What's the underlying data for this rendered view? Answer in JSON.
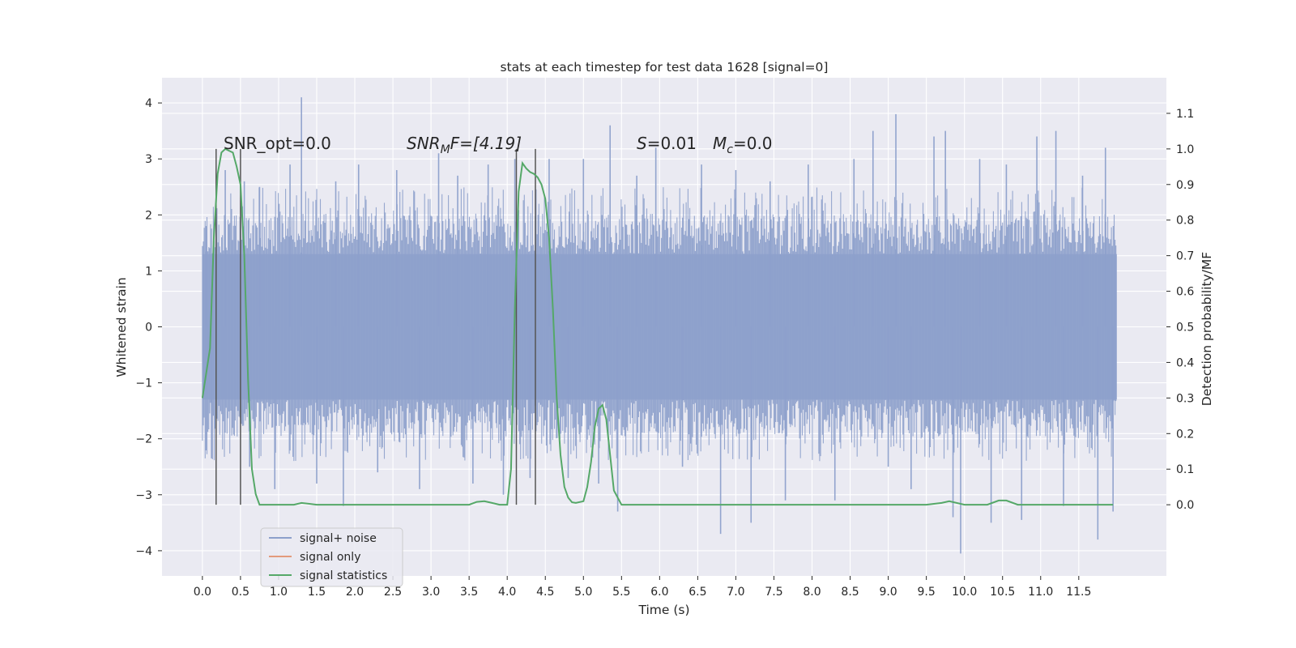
{
  "chart_data": {
    "type": "line",
    "title": "stats at each timestep for test data 1628 [signal=0]",
    "xlabel": "Time (s)",
    "ylabel": "Whitened strain",
    "y2label": "Detection probability/MF",
    "xlim": [
      -0.53,
      12.65
    ],
    "ylim": [
      -4.45,
      4.45
    ],
    "y2lim": [
      -0.2,
      1.2
    ],
    "x_ticks": [
      0.0,
      0.5,
      1.0,
      1.5,
      2.0,
      2.5,
      3.0,
      3.5,
      4.0,
      4.5,
      5.0,
      5.5,
      6.0,
      6.5,
      7.0,
      7.5,
      8.0,
      8.5,
      9.0,
      9.5,
      10.0,
      10.5,
      11.0,
      11.5
    ],
    "x_tick_labels": [
      "0.0",
      "0.5",
      "1.0",
      "1.5",
      "2.0",
      "2.5",
      "3.0",
      "3.5",
      "4.0",
      "4.5",
      "5.0",
      "5.5",
      "6.0",
      "6.5",
      "7.0",
      "7.5",
      "8.0",
      "8.5",
      "9.0",
      "9.5",
      "10.0",
      "10.5",
      "11.0",
      "11.5"
    ],
    "y_ticks": [
      4,
      3,
      2,
      1,
      0,
      -1,
      -2,
      -3,
      -4
    ],
    "y_tick_labels": [
      "4",
      "3",
      "2",
      "1",
      "0",
      "−1",
      "−2",
      "−3",
      "−4"
    ],
    "y2_ticks": [
      1.1,
      1.0,
      0.9,
      0.8,
      0.7,
      0.6,
      0.5,
      0.4,
      0.3,
      0.2,
      0.1,
      0.0
    ],
    "y2_tick_labels": [
      "1.1",
      "1.0",
      "0.9",
      "0.8",
      "0.7",
      "0.6",
      "0.5",
      "0.4",
      "0.3",
      "0.2",
      "0.1",
      "0.0"
    ],
    "grid": true,
    "legend_position": "lower-left",
    "legend": [
      {
        "name": "signal+ noise",
        "color": "#8da0cb"
      },
      {
        "name": "signal only",
        "color": "#e39a7c"
      },
      {
        "name": "signal statistics",
        "color": "#55a868"
      }
    ],
    "annotations": {
      "snr_opt": "SNR_opt=0.0",
      "snr_mf_main": "SNR",
      "snr_mf_sub": "M",
      "snr_mf_rest": "F=[4.19]",
      "s_main": "S",
      "s_rest": "=0.01",
      "mc_main": "M",
      "mc_sub": "c",
      "mc_rest": "=0.0"
    },
    "series": [
      {
        "name": "signal+ noise",
        "color": "#8da0cb",
        "x_range": [
          0.0,
          12.0
        ],
        "band_ylim": [
          -1.3,
          1.3
        ],
        "spikes": [
          {
            "x": 0.05,
            "y": 1.8
          },
          {
            "x": 0.12,
            "y": -2.35
          },
          {
            "x": 0.3,
            "y": 2.8
          },
          {
            "x": 0.55,
            "y": 2.6
          },
          {
            "x": 0.62,
            "y": -2.5
          },
          {
            "x": 0.75,
            "y": 2.5
          },
          {
            "x": 0.95,
            "y": -2.9
          },
          {
            "x": 1.15,
            "y": 2.9
          },
          {
            "x": 1.3,
            "y": 4.1
          },
          {
            "x": 1.5,
            "y": -2.8
          },
          {
            "x": 1.75,
            "y": 2.6
          },
          {
            "x": 1.85,
            "y": -3.2
          },
          {
            "x": 2.05,
            "y": 2.9
          },
          {
            "x": 2.3,
            "y": -2.6
          },
          {
            "x": 2.55,
            "y": 2.8
          },
          {
            "x": 2.85,
            "y": -2.9
          },
          {
            "x": 3.1,
            "y": 3.1
          },
          {
            "x": 3.35,
            "y": 2.7
          },
          {
            "x": 3.55,
            "y": -2.8
          },
          {
            "x": 3.75,
            "y": 2.9
          },
          {
            "x": 3.95,
            "y": -3.0
          },
          {
            "x": 4.1,
            "y": 3.0
          },
          {
            "x": 4.3,
            "y": -2.7
          },
          {
            "x": 4.55,
            "y": 3.0
          },
          {
            "x": 4.8,
            "y": -2.7
          },
          {
            "x": 5.0,
            "y": 3.0
          },
          {
            "x": 5.2,
            "y": -2.8
          },
          {
            "x": 5.35,
            "y": 3.6
          },
          {
            "x": 5.45,
            "y": -3.3
          },
          {
            "x": 5.7,
            "y": 2.7
          },
          {
            "x": 5.95,
            "y": 3.2
          },
          {
            "x": 6.3,
            "y": -2.5
          },
          {
            "x": 6.55,
            "y": 2.9
          },
          {
            "x": 6.8,
            "y": -3.7
          },
          {
            "x": 7.0,
            "y": 2.8
          },
          {
            "x": 7.2,
            "y": -3.5
          },
          {
            "x": 7.45,
            "y": 2.6
          },
          {
            "x": 7.65,
            "y": -3.1
          },
          {
            "x": 7.95,
            "y": 2.9
          },
          {
            "x": 8.3,
            "y": -3.1
          },
          {
            "x": 8.55,
            "y": 3.0
          },
          {
            "x": 8.8,
            "y": 3.5
          },
          {
            "x": 9.0,
            "y": -2.5
          },
          {
            "x": 9.1,
            "y": 3.8
          },
          {
            "x": 9.3,
            "y": -2.9
          },
          {
            "x": 9.6,
            "y": 3.4
          },
          {
            "x": 9.75,
            "y": 3.5
          },
          {
            "x": 9.85,
            "y": -3.4
          },
          {
            "x": 9.95,
            "y": -4.05
          },
          {
            "x": 10.2,
            "y": 3.0
          },
          {
            "x": 10.35,
            "y": -3.5
          },
          {
            "x": 10.55,
            "y": 2.9
          },
          {
            "x": 10.75,
            "y": -3.45
          },
          {
            "x": 10.95,
            "y": 3.4
          },
          {
            "x": 11.2,
            "y": 3.5
          },
          {
            "x": 11.3,
            "y": -3.2
          },
          {
            "x": 11.55,
            "y": 2.7
          },
          {
            "x": 11.75,
            "y": -3.8
          },
          {
            "x": 11.85,
            "y": 3.2
          },
          {
            "x": 11.95,
            "y": -3.3
          }
        ]
      },
      {
        "name": "signal statistics",
        "color": "#55a868",
        "axis": "right",
        "x": [
          0.0,
          0.05,
          0.1,
          0.15,
          0.2,
          0.25,
          0.3,
          0.35,
          0.4,
          0.45,
          0.5,
          0.55,
          0.6,
          0.65,
          0.7,
          0.75,
          0.8,
          0.9,
          1.0,
          1.2,
          1.3,
          1.5,
          2.0,
          2.5,
          3.0,
          3.5,
          3.6,
          3.7,
          3.8,
          3.9,
          4.0,
          4.05,
          4.1,
          4.15,
          4.2,
          4.25,
          4.3,
          4.35,
          4.4,
          4.45,
          4.5,
          4.55,
          4.6,
          4.65,
          4.7,
          4.75,
          4.8,
          4.85,
          4.9,
          5.0,
          5.05,
          5.1,
          5.15,
          5.2,
          5.25,
          5.3,
          5.35,
          5.4,
          5.5,
          5.6,
          6.0,
          7.0,
          8.0,
          8.5,
          9.0,
          9.5,
          9.7,
          9.8,
          10.0,
          10.3,
          10.45,
          10.55,
          10.7,
          11.0,
          11.5,
          11.95
        ],
        "y": [
          0.3,
          0.37,
          0.44,
          0.75,
          0.93,
          0.99,
          1.0,
          0.995,
          0.99,
          0.95,
          0.9,
          0.7,
          0.35,
          0.1,
          0.03,
          0.0,
          0.0,
          0.0,
          0.0,
          0.0,
          0.005,
          0.0,
          0.0,
          0.0,
          0.0,
          0.0,
          0.008,
          0.01,
          0.005,
          0.0,
          0.0,
          0.1,
          0.55,
          0.88,
          0.96,
          0.945,
          0.935,
          0.93,
          0.92,
          0.9,
          0.86,
          0.75,
          0.55,
          0.3,
          0.14,
          0.05,
          0.02,
          0.007,
          0.005,
          0.01,
          0.05,
          0.12,
          0.22,
          0.27,
          0.28,
          0.24,
          0.14,
          0.04,
          0.0,
          0.0,
          0.0,
          0.0,
          0.0,
          0.0,
          0.0,
          0.0,
          0.005,
          0.01,
          0.0,
          0.0,
          0.012,
          0.012,
          0.0,
          0.0,
          0.0,
          0.0
        ]
      }
    ],
    "markers": [
      {
        "x": 0.18,
        "y_top": 1.0,
        "y_bottom": 0.0
      },
      {
        "x": 0.5,
        "y_top": 1.0,
        "y_bottom": 0.0
      },
      {
        "x": 4.12,
        "y_top": 1.0,
        "y_bottom": 0.0
      },
      {
        "x": 4.37,
        "y_top": 1.0,
        "y_bottom": 0.0
      }
    ]
  }
}
